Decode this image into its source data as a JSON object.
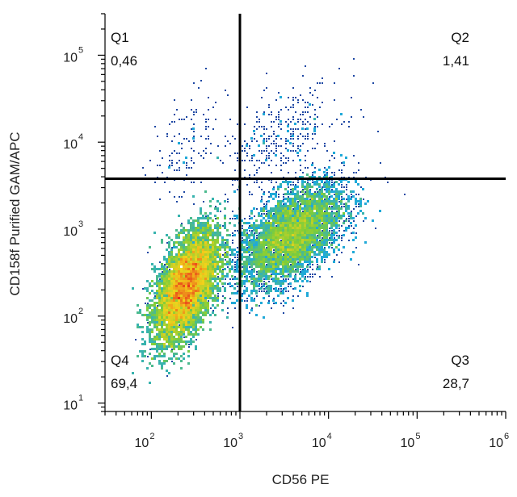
{
  "chart_data": {
    "type": "scatter",
    "subtype": "flow-cytometry-density-dot-plot",
    "xlabel": "CD56 PE",
    "ylabel": "CD158f Purified GAM/APC",
    "x_scale": "log",
    "y_scale": "log",
    "xlim": [
      30,
      1000000
    ],
    "ylim": [
      8,
      300000
    ],
    "x_ticks": [
      {
        "base": "10",
        "exp": "2",
        "value": 100
      },
      {
        "base": "10",
        "exp": "3",
        "value": 1000
      },
      {
        "base": "10",
        "exp": "4",
        "value": 10000
      },
      {
        "base": "10",
        "exp": "5",
        "value": 100000
      },
      {
        "base": "10",
        "exp": "6",
        "value": 1000000
      }
    ],
    "y_ticks": [
      {
        "base": "10",
        "exp": "1",
        "value": 10
      },
      {
        "base": "10",
        "exp": "2",
        "value": 100
      },
      {
        "base": "10",
        "exp": "3",
        "value": 1000
      },
      {
        "base": "10",
        "exp": "4",
        "value": 10000
      },
      {
        "base": "10",
        "exp": "5",
        "value": 100000
      }
    ],
    "gates": {
      "x": 1000,
      "y": 3800
    },
    "quadrants": [
      {
        "name": "Q1",
        "value": "0,46",
        "position": "top-left"
      },
      {
        "name": "Q2",
        "value": "1,41",
        "position": "top-right"
      },
      {
        "name": "Q3",
        "value": "28,7",
        "position": "bottom-right"
      },
      {
        "name": "Q4",
        "value": "69,4",
        "position": "bottom-left"
      }
    ],
    "populations": [
      {
        "center_x": 250,
        "center_y": 220,
        "spread_log_x": 0.18,
        "spread_log_y": 0.32,
        "share": 0.694
      },
      {
        "center_x": 3800,
        "center_y": 850,
        "spread_log_x": 0.3,
        "spread_log_y": 0.3,
        "share": 0.287
      },
      {
        "center_x": 2800,
        "center_y": 11000,
        "spread_log_x": 0.35,
        "spread_log_y": 0.3,
        "share": 0.014
      },
      {
        "center_x": 250,
        "center_y": 9000,
        "spread_log_x": 0.2,
        "spread_log_y": 0.35,
        "share": 0.005
      }
    ],
    "colors": {
      "density_low": "#1d3f9e",
      "density_mid_low": "#20a9d8",
      "density_mid": "#7ccd3a",
      "density_mid_high": "#f2d21b",
      "density_high": "#e8231b",
      "gate_line": "#000000",
      "axis": "#000000"
    }
  }
}
